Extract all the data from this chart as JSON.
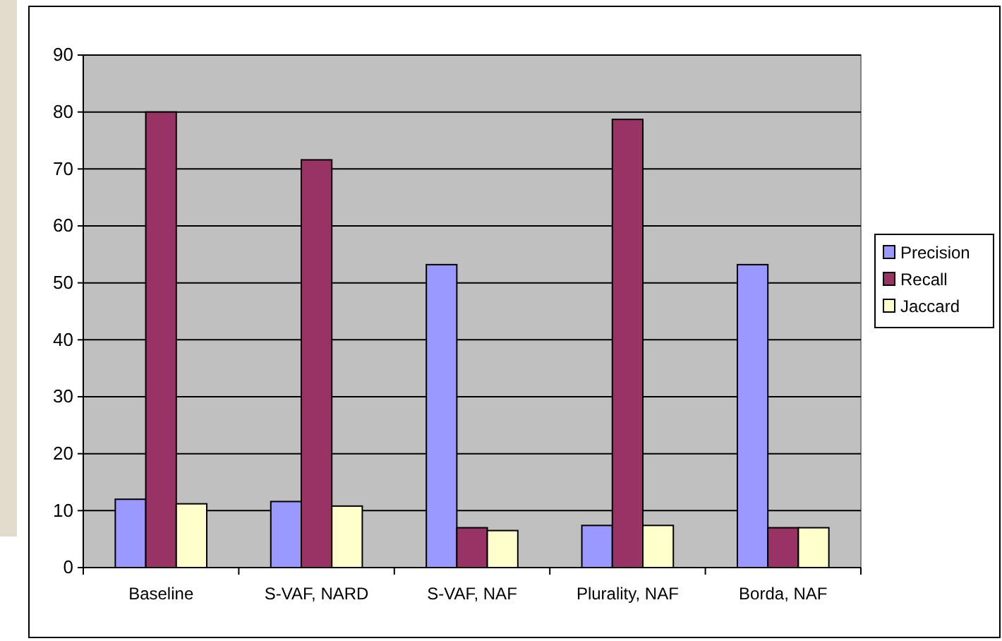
{
  "chart_data": {
    "type": "bar",
    "categories": [
      "Baseline",
      "S-VAF, NARD",
      "S-VAF, NAF",
      "Plurality, NAF",
      "Borda, NAF"
    ],
    "series": [
      {
        "name": "Precision",
        "color": "#9999ff",
        "values": [
          12.0,
          11.6,
          53.2,
          7.4,
          53.2
        ]
      },
      {
        "name": "Recall",
        "color": "#993366",
        "values": [
          80.0,
          71.6,
          7.0,
          78.7,
          7.0
        ]
      },
      {
        "name": "Jaccard",
        "color": "#ffffcc",
        "values": [
          11.2,
          10.8,
          6.5,
          7.4,
          7.0
        ]
      }
    ],
    "ylim": [
      0,
      90
    ],
    "yticks": [
      0,
      10,
      20,
      30,
      40,
      50,
      60,
      70,
      80,
      90
    ],
    "grid": "y",
    "legend": "right"
  }
}
